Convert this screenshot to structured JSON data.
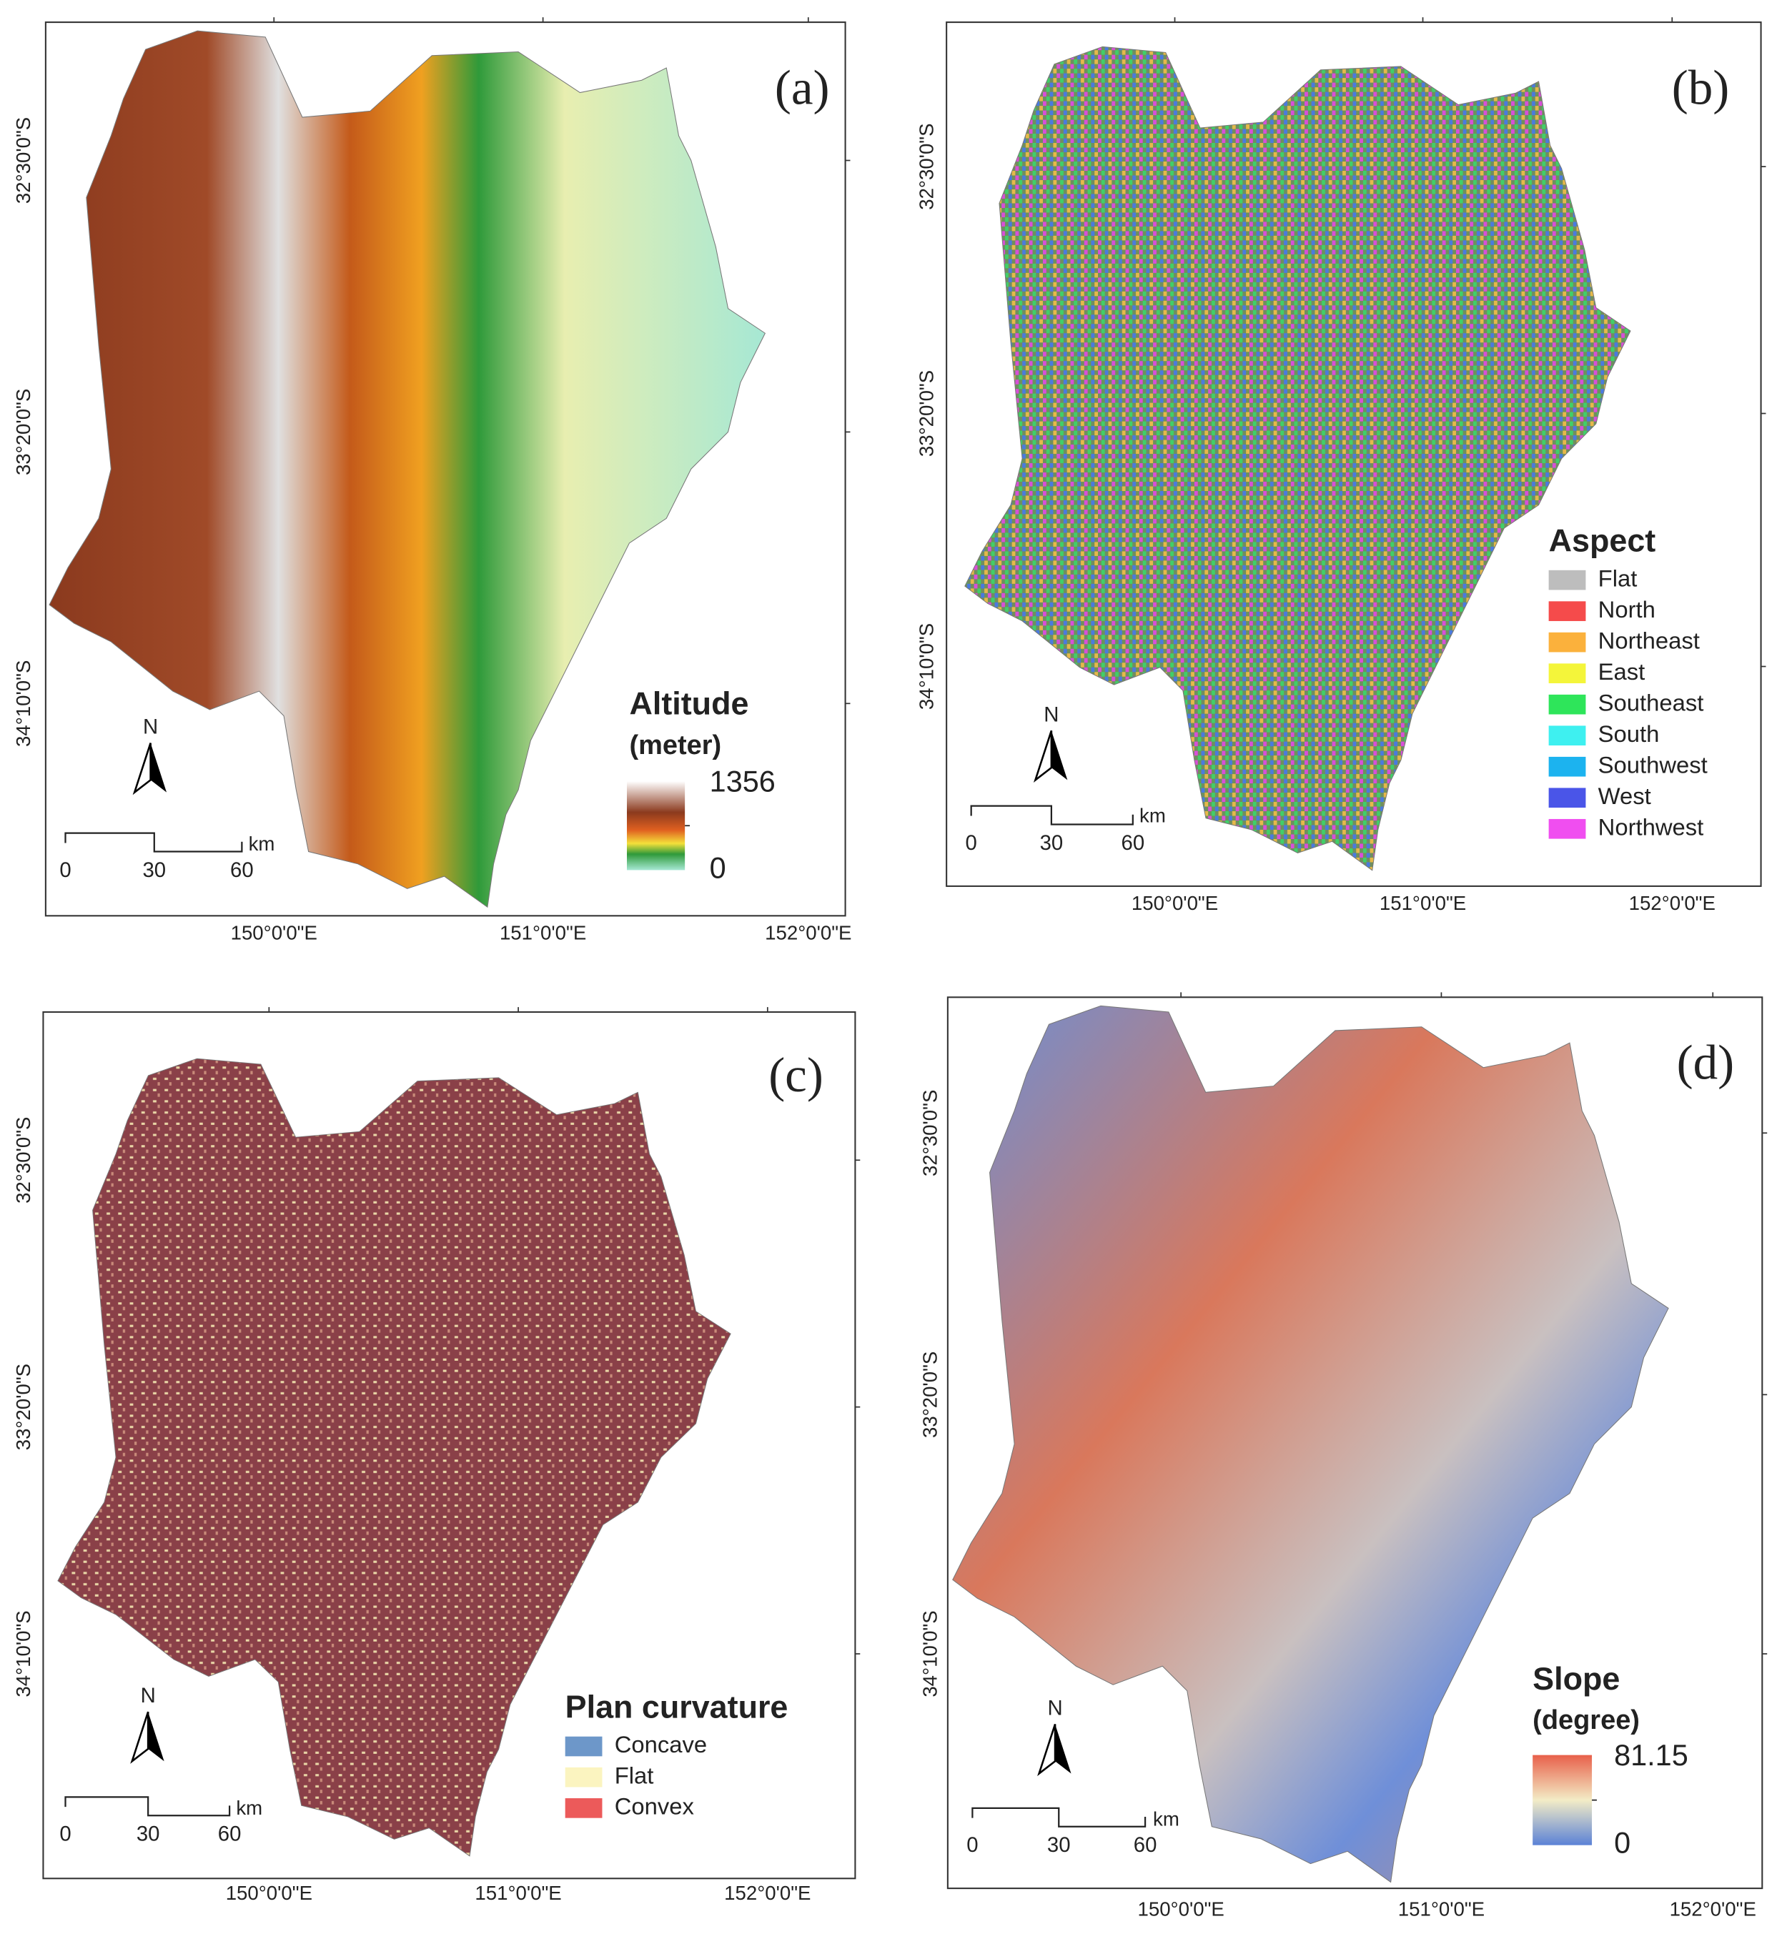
{
  "panels": [
    {
      "label": "(a)",
      "lat_labels": [
        "32°30'0\"S",
        "33°20'0\"S",
        "34°10'0\"S"
      ],
      "lon_labels": [
        "150°0'0\"E",
        "151°0'0\"E",
        "152°0'0\"E"
      ],
      "north": "N",
      "scale_bar": {
        "ticks": [
          "0",
          "30",
          "60"
        ],
        "unit": "km"
      },
      "legend": {
        "title": "Altitude",
        "subtitle": "(meter)",
        "max": "1356",
        "min": "0"
      }
    },
    {
      "label": "(b)",
      "lat_labels": [
        "32°30'0\"S",
        "33°20'0\"S",
        "34°10'0\"S"
      ],
      "lon_labels": [
        "150°0'0\"E",
        "151°0'0\"E",
        "152°0'0\"E"
      ],
      "north": "N",
      "scale_bar": {
        "ticks": [
          "0",
          "30",
          "60"
        ],
        "unit": "km"
      },
      "legend": {
        "title": "Aspect",
        "items": [
          {
            "label": "Flat",
            "color": "#bdbdbd"
          },
          {
            "label": "North",
            "color": "#f54b4b"
          },
          {
            "label": "Northeast",
            "color": "#fbb13c"
          },
          {
            "label": "East",
            "color": "#f4f53a"
          },
          {
            "label": "Southeast",
            "color": "#2ee55a"
          },
          {
            "label": "South",
            "color": "#3ef0f0"
          },
          {
            "label": "Southwest",
            "color": "#1cb3ef"
          },
          {
            "label": "West",
            "color": "#4a55e8"
          },
          {
            "label": "Northwest",
            "color": "#f04ef0"
          }
        ]
      }
    },
    {
      "label": "(c)",
      "lat_labels": [
        "32°30'0\"S",
        "33°20'0\"S",
        "34°10'0\"S"
      ],
      "lon_labels": [
        "150°0'0\"E",
        "151°0'0\"E",
        "152°0'0\"E"
      ],
      "north": "N",
      "scale_bar": {
        "ticks": [
          "0",
          "30",
          "60"
        ],
        "unit": "km"
      },
      "legend": {
        "title": "Plan curvature",
        "items": [
          {
            "label": "Concave",
            "color": "#6d97c9"
          },
          {
            "label": "Flat",
            "color": "#fbf4c0"
          },
          {
            "label": "Convex",
            "color": "#ec5a5a"
          }
        ]
      }
    },
    {
      "label": "(d)",
      "lat_labels": [
        "32°30'0\"S",
        "33°20'0\"S",
        "34°10'0\"S"
      ],
      "lon_labels": [
        "150°0'0\"E",
        "151°0'0\"E",
        "152°0'0\"E"
      ],
      "north": "N",
      "scale_bar": {
        "ticks": [
          "0",
          "30",
          "60"
        ],
        "unit": "km"
      },
      "legend": {
        "title": "Slope",
        "subtitle": "(degree)",
        "max": "81.15",
        "min": "0"
      }
    }
  ]
}
